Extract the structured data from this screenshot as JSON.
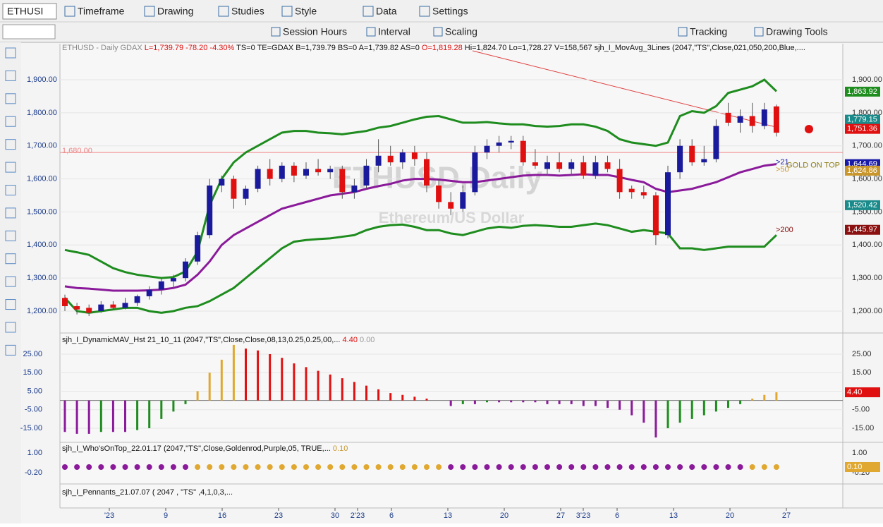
{
  "toolbar1": {
    "symbol": "ETHUSI",
    "items": [
      "Timeframe",
      "Drawing",
      "Studies",
      "Style",
      "Data",
      "Settings"
    ]
  },
  "toolbar2": {
    "items": [
      "Session Hours",
      "Interval",
      "Scaling",
      "Tracking",
      "Drawing Tools"
    ]
  },
  "header": {
    "symbol": "ETHUSD - Daily  GDAX",
    "last": "L=1,739.79 -78.20 -4.30%",
    "quote": "TS=0 TE=GDAX B=1,739.79 BS=0 A=1,739.82 AS=0",
    "open": "O=1,819.28",
    "rest": "Hi=1,824.70 Lo=1,728.27 V=158,567 sjh_I_MovAvg_3Lines (2047,\"TS\",Close,021,050,200,Blue,...."
  },
  "watermark": {
    "title": "ETHUSD,Daily",
    "subtitle": "Ethereum/US Dollar"
  },
  "price_ticks": [
    {
      "value": 1900,
      "label": "1,900.00"
    },
    {
      "value": 1800,
      "label": "1,800.00"
    },
    {
      "value": 1700,
      "label": "1,700.00"
    },
    {
      "value": 1600,
      "label": "1,600.00"
    },
    {
      "value": 1500,
      "label": "1,500.00"
    },
    {
      "value": 1400,
      "label": "1,400.00"
    },
    {
      "value": 1300,
      "label": "1,300.00"
    },
    {
      "value": 1200,
      "label": "1,200.00"
    }
  ],
  "price_line": {
    "value": 1680,
    "label": "1,680.00"
  },
  "badges": [
    {
      "value": 1863.92,
      "label": "1,863.92",
      "color": "#1e8c1e"
    },
    {
      "value": 1779.15,
      "label": "1,779.15",
      "color": "#1a8a8a"
    },
    {
      "value": 1751.36,
      "label": "1,751.36",
      "color": "#e01010"
    },
    {
      "value": 1644.69,
      "label": "1,644.69",
      "color": "#1a1aa8"
    },
    {
      "value": 1624.86,
      "label": "1,624.86",
      "color": "#c8962a"
    },
    {
      "value": 1520.42,
      "label": "1,520.42",
      "color": "#1a8a8a"
    },
    {
      "value": 1445.97,
      "label": "1,445.97",
      "color": "#8b1010"
    }
  ],
  "annotations": [
    {
      "text": ">21",
      "value": 1650,
      "color": "#1a1aa8"
    },
    {
      "text": "GOLD ON TOP",
      "value": 1640,
      "color": "#8a7a10"
    },
    {
      "text": ">50",
      "value": 1628,
      "color": "#c8962a"
    },
    {
      "text": ">200",
      "value": 1445,
      "color": "#8b1010"
    }
  ],
  "candles": [
    [
      1240,
      1250,
      1200,
      1215
    ],
    [
      1215,
      1225,
      1190,
      1205
    ],
    [
      1210,
      1220,
      1185,
      1195
    ],
    [
      1200,
      1230,
      1195,
      1220
    ],
    [
      1220,
      1230,
      1205,
      1210
    ],
    [
      1210,
      1240,
      1205,
      1225
    ],
    [
      1225,
      1250,
      1215,
      1245
    ],
    [
      1245,
      1275,
      1235,
      1265
    ],
    [
      1265,
      1300,
      1250,
      1290
    ],
    [
      1290,
      1310,
      1270,
      1300
    ],
    [
      1300,
      1360,
      1290,
      1350
    ],
    [
      1350,
      1440,
      1340,
      1430
    ],
    [
      1430,
      1600,
      1420,
      1580
    ],
    [
      1580,
      1610,
      1560,
      1600
    ],
    [
      1600,
      1610,
      1510,
      1540
    ],
    [
      1540,
      1580,
      1520,
      1570
    ],
    [
      1570,
      1640,
      1560,
      1630
    ],
    [
      1630,
      1660,
      1580,
      1600
    ],
    [
      1600,
      1650,
      1590,
      1640
    ],
    [
      1640,
      1650,
      1590,
      1610
    ],
    [
      1610,
      1650,
      1600,
      1630
    ],
    [
      1630,
      1660,
      1610,
      1620
    ],
    [
      1620,
      1640,
      1600,
      1630
    ],
    [
      1630,
      1640,
      1540,
      1560
    ],
    [
      1560,
      1600,
      1540,
      1580
    ],
    [
      1580,
      1660,
      1570,
      1640
    ],
    [
      1640,
      1720,
      1620,
      1670
    ],
    [
      1670,
      1700,
      1640,
      1650
    ],
    [
      1650,
      1690,
      1630,
      1680
    ],
    [
      1680,
      1700,
      1640,
      1660
    ],
    [
      1660,
      1680,
      1560,
      1580
    ],
    [
      1580,
      1600,
      1510,
      1530
    ],
    [
      1530,
      1560,
      1490,
      1510
    ],
    [
      1510,
      1580,
      1500,
      1560
    ],
    [
      1560,
      1700,
      1550,
      1680
    ],
    [
      1680,
      1720,
      1660,
      1700
    ],
    [
      1700,
      1730,
      1680,
      1710
    ],
    [
      1710,
      1730,
      1690,
      1715
    ],
    [
      1715,
      1730,
      1640,
      1650
    ],
    [
      1650,
      1690,
      1630,
      1640
    ],
    [
      1630,
      1670,
      1610,
      1650
    ],
    [
      1650,
      1680,
      1620,
      1630
    ],
    [
      1630,
      1660,
      1610,
      1650
    ],
    [
      1650,
      1670,
      1600,
      1610
    ],
    [
      1610,
      1670,
      1600,
      1650
    ],
    [
      1650,
      1670,
      1620,
      1630
    ],
    [
      1630,
      1660,
      1540,
      1560
    ],
    [
      1570,
      1580,
      1540,
      1560
    ],
    [
      1560,
      1580,
      1540,
      1550
    ],
    [
      1550,
      1560,
      1400,
      1430
    ],
    [
      1430,
      1640,
      1420,
      1620
    ],
    [
      1620,
      1720,
      1600,
      1700
    ],
    [
      1700,
      1720,
      1640,
      1650
    ],
    [
      1650,
      1700,
      1640,
      1660
    ],
    [
      1660,
      1780,
      1650,
      1760
    ],
    [
      1800,
      1830,
      1760,
      1770
    ],
    [
      1770,
      1810,
      1740,
      1790
    ],
    [
      1790,
      1830,
      1740,
      1760
    ],
    [
      1760,
      1830,
      1750,
      1810
    ],
    [
      1819.28,
      1824.7,
      1728.27,
      1739.79
    ]
  ],
  "lines": [
    {
      "color": "#1e8c1e",
      "values": [
        1385,
        1378,
        1370,
        1350,
        1330,
        1318,
        1310,
        1305,
        1300,
        1303,
        1320,
        1380,
        1520,
        1600,
        1650,
        1680,
        1700,
        1720,
        1740,
        1745,
        1745,
        1740,
        1738,
        1735,
        1740,
        1745,
        1755,
        1760,
        1770,
        1780,
        1788,
        1790,
        1780,
        1770,
        1770,
        1772,
        1768,
        1765,
        1765,
        1760,
        1758,
        1760,
        1765,
        1765,
        1758,
        1745,
        1720,
        1710,
        1705,
        1700,
        1710,
        1790,
        1805,
        1800,
        1820,
        1860,
        1870,
        1880,
        1900,
        1865
      ]
    },
    {
      "color": "#1e8c1e",
      "values": [
        1240,
        1200,
        1195,
        1200,
        1205,
        1210,
        1210,
        1200,
        1195,
        1200,
        1210,
        1215,
        1230,
        1250,
        1270,
        1300,
        1330,
        1360,
        1390,
        1410,
        1415,
        1418,
        1420,
        1425,
        1430,
        1445,
        1455,
        1460,
        1462,
        1455,
        1445,
        1445,
        1435,
        1430,
        1440,
        1450,
        1455,
        1452,
        1458,
        1460,
        1458,
        1455,
        1455,
        1460,
        1465,
        1460,
        1450,
        1440,
        1445,
        1440,
        1435,
        1390,
        1390,
        1385,
        1390,
        1395,
        1395,
        1395,
        1395,
        1430
      ]
    },
    {
      "color": "#8a1a9a",
      "values": [
        1275,
        1270,
        1268,
        1265,
        1262,
        1262,
        1262,
        1263,
        1265,
        1270,
        1280,
        1310,
        1350,
        1400,
        1430,
        1450,
        1470,
        1490,
        1510,
        1520,
        1530,
        1540,
        1550,
        1555,
        1560,
        1570,
        1578,
        1585,
        1595,
        1600,
        1600,
        1598,
        1594,
        1590,
        1590,
        1595,
        1600,
        1605,
        1610,
        1612,
        1612,
        1610,
        1612,
        1614,
        1612,
        1612,
        1605,
        1597,
        1590,
        1570,
        1560,
        1565,
        1570,
        1580,
        1590,
        1605,
        1620,
        1630,
        1640,
        1644.69
      ]
    }
  ],
  "hist_pane": {
    "label": "sjh_I_DynamicMAV_Hst 21_10_11 (2047,\"TS\",Close,Close,08,13,0.25,0.25,00,...",
    "value": "4.40",
    "zero": "0.00",
    "badge": "4.40",
    "ticks": [
      {
        "value": 25,
        "label": "25.00"
      },
      {
        "value": 15,
        "label": "15.00"
      },
      {
        "value": 5,
        "label": "5.00"
      },
      {
        "value": -5,
        "label": "-5.00"
      },
      {
        "value": -15,
        "label": "-15.00"
      }
    ],
    "values": [
      -17,
      -18,
      -18,
      -17,
      -17,
      -17,
      -16,
      -15,
      -10,
      -6,
      -2,
      5,
      15,
      22,
      30,
      28,
      27,
      25,
      23,
      20,
      18,
      16,
      14,
      12,
      10,
      8,
      6,
      4,
      3,
      2,
      1,
      0,
      -3,
      -2,
      -2,
      -1,
      -1,
      -1,
      -1,
      -1,
      -2,
      -2,
      -2,
      -3,
      -3,
      -4,
      -5,
      -8,
      -12,
      -20,
      -15,
      -12,
      -10,
      -8,
      -6,
      -4,
      -2,
      1,
      3,
      4.4
    ]
  },
  "who_pane": {
    "label": "sjh_I_Who'sOnTop_22.01.17 (2047,\"TS\",Close,Goldenrod,Purple,05, TRUE,...",
    "value": "0.10",
    "badge": "0.10",
    "ticks": [
      {
        "value": 1,
        "label": "1.00"
      },
      {
        "value": -0.2,
        "label": "-0.20"
      }
    ]
  },
  "pennant_pane": {
    "label": "sjh_I_Pennants_21.07.07 ( 2047 , \"TS\" ,4,1,0,3,..."
  },
  "x_labels": [
    "'23",
    "9",
    "16",
    "23",
    "30",
    "2'23",
    "6",
    "13",
    "20",
    "27",
    "3'23",
    "6",
    "13",
    "20",
    "27"
  ]
}
